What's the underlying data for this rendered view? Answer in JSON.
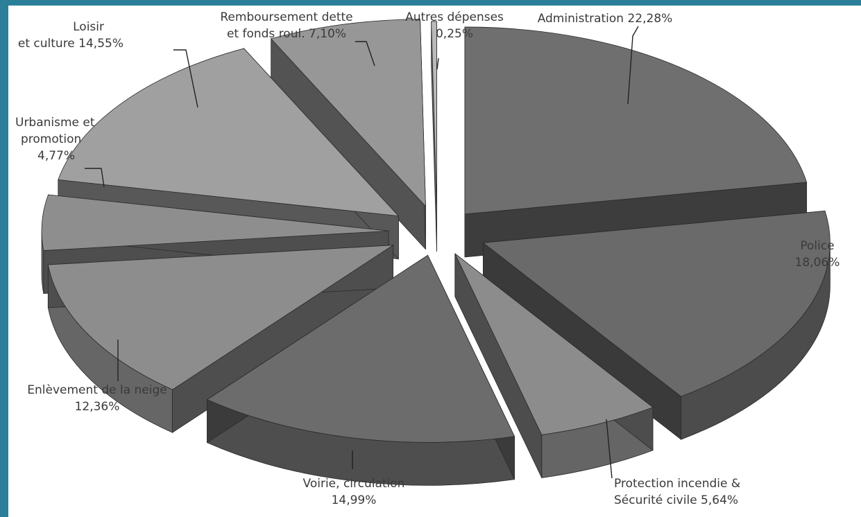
{
  "chart_data": {
    "type": "pie",
    "style": "3d-exploded",
    "slices": [
      {
        "name_lines": [
          "Administration 22,28%"
        ],
        "value": 22.28,
        "color": "#6f6f6f"
      },
      {
        "name_lines": [
          "Police",
          "18,06%"
        ],
        "value": 18.06,
        "color": "#6a6a6a"
      },
      {
        "name_lines": [
          "Protection incendie &",
          "Sécurité civile 5,64%"
        ],
        "value": 5.64,
        "color": "#8c8c8c"
      },
      {
        "name_lines": [
          "Voirie, circulation",
          "14,99%"
        ],
        "value": 14.99,
        "color": "#6c6c6c"
      },
      {
        "name_lines": [
          "Enlèvement de la neige",
          "12,36%"
        ],
        "value": 12.36,
        "color": "#8d8d8d"
      },
      {
        "name_lines": [
          "Urbanisme et",
          "promotion",
          "4,77%"
        ],
        "value": 4.77,
        "color": "#8e8e8e"
      },
      {
        "name_lines": [
          "Loisir",
          "et culture 14,55%"
        ],
        "value": 14.55,
        "color": "#a0a0a0"
      },
      {
        "name_lines": [
          "Remboursement dette",
          "et fonds roul. 7,10%"
        ],
        "value": 7.1,
        "color": "#979797"
      },
      {
        "name_lines": [
          "Autres dépenses",
          "0,25%"
        ],
        "value": 0.25,
        "color": "#b9b9b9"
      }
    ],
    "frame_color": "#2b7f99"
  }
}
